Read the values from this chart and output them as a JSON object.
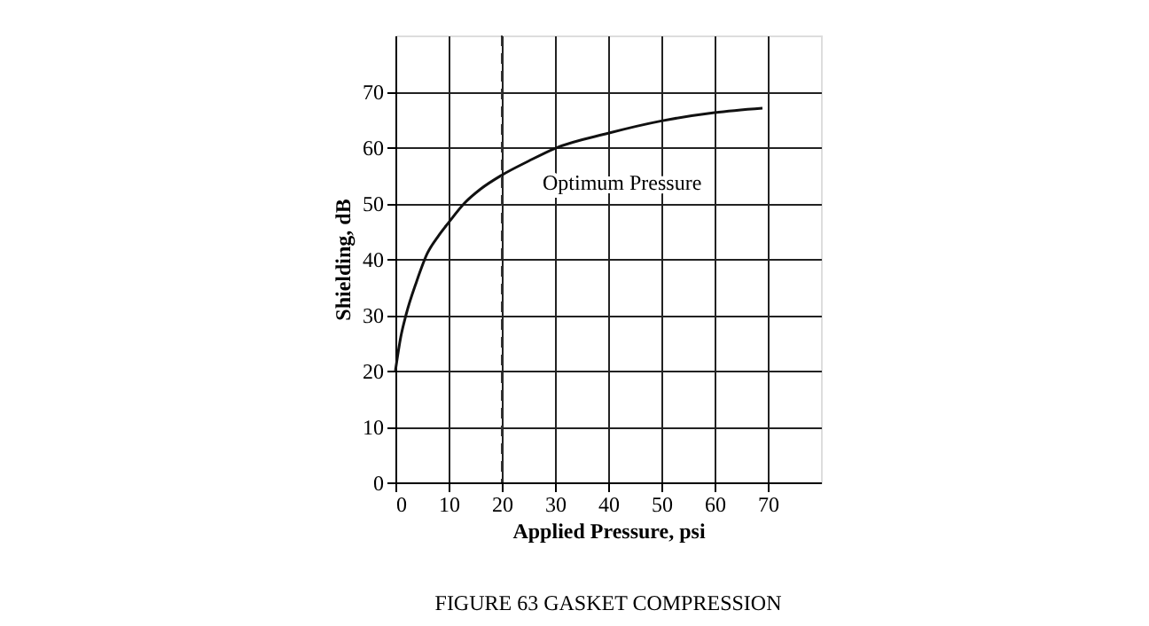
{
  "chart_data": {
    "type": "line",
    "title": "FIGURE 63    GASKET COMPRESSION",
    "xlabel": "Applied Pressure, psi",
    "ylabel": "Shielding, dB",
    "series": [
      {
        "color": "#111111",
        "x": [
          0,
          1,
          2,
          4,
          6,
          8,
          10,
          13,
          16,
          20,
          25,
          30,
          40,
          50,
          60,
          69
        ],
        "values": [
          20,
          26,
          30,
          36,
          41,
          44,
          46.5,
          50,
          52.5,
          55,
          57.5,
          59.8,
          62.5,
          64.7,
          66.2,
          67
        ]
      }
    ],
    "xlim": [
      0,
      80
    ],
    "xticks": [
      0,
      10,
      20,
      30,
      40,
      50,
      60,
      70
    ],
    "ylim": [
      0,
      80
    ],
    "yticks": [
      0,
      10,
      20,
      30,
      40,
      50,
      60,
      70
    ],
    "grid": true,
    "marker": "none",
    "line_style": "solid",
    "ref_lines": [
      {
        "axis": "x",
        "value": 20,
        "line_style": "dashed",
        "color": "#333333",
        "label": "Optimum Pressure"
      }
    ]
  }
}
